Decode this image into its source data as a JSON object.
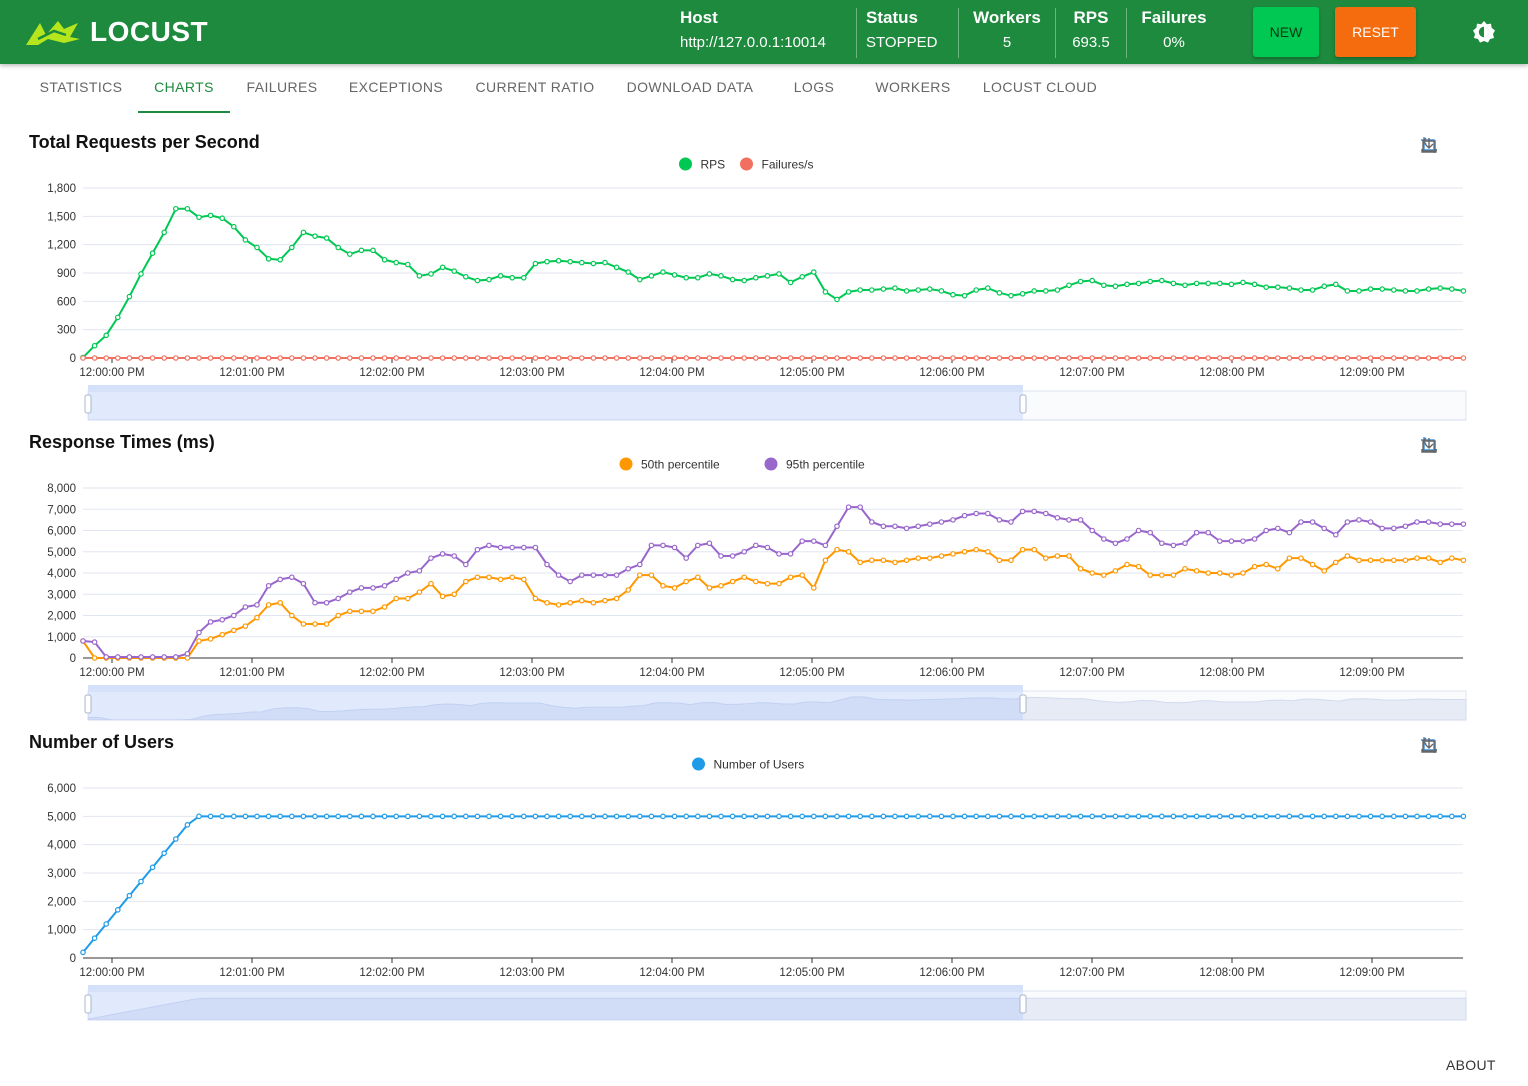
{
  "app": {
    "name": "LOCUST"
  },
  "header": {
    "host_label": "Host",
    "host_value": "http://127.0.0.1:10014",
    "status_label": "Status",
    "status_value": "STOPPED",
    "workers_label": "Workers",
    "workers_value": "5",
    "rps_label": "RPS",
    "rps_value": "693.5",
    "failures_label": "Failures",
    "failures_value": "0%",
    "new_label": "NEW",
    "reset_label": "RESET"
  },
  "tabs": [
    "STATISTICS",
    "CHARTS",
    "FAILURES",
    "EXCEPTIONS",
    "CURRENT RATIO",
    "DOWNLOAD DATA",
    "LOGS",
    "WORKERS",
    "LOCUST CLOUD"
  ],
  "active_tab": "CHARTS",
  "footer": {
    "about": "ABOUT"
  },
  "colors": {
    "brand": "#1d8a3e",
    "new": "#00c853",
    "reset": "#f56c0e"
  },
  "chart_data": [
    {
      "type": "line",
      "title": "Total Requests per Second",
      "ylim": [
        0,
        1800
      ],
      "yticks": [
        "0",
        "300",
        "600",
        "900",
        "1,200",
        "1,500",
        "1,800"
      ],
      "xticks": [
        "12:00:00 PM",
        "12:01:00 PM",
        "12:02:00 PM",
        "12:03:00 PM",
        "12:04:00 PM",
        "12:05:00 PM",
        "12:06:00 PM",
        "12:07:00 PM",
        "12:08:00 PM",
        "12:09:00 PM"
      ],
      "series": [
        {
          "name": "RPS",
          "color": "#00c853",
          "values": [
            5,
            130,
            240,
            430,
            650,
            890,
            1110,
            1330,
            1580,
            1580,
            1490,
            1510,
            1480,
            1390,
            1250,
            1170,
            1050,
            1040,
            1170,
            1330,
            1290,
            1270,
            1170,
            1100,
            1140,
            1140,
            1040,
            1010,
            990,
            870,
            890,
            960,
            920,
            860,
            820,
            830,
            870,
            850,
            850,
            1000,
            1020,
            1030,
            1020,
            1010,
            1000,
            1010,
            960,
            910,
            830,
            870,
            910,
            880,
            850,
            850,
            890,
            870,
            830,
            820,
            850,
            870,
            890,
            800,
            860,
            910,
            700,
            620,
            700,
            720,
            720,
            730,
            740,
            710,
            720,
            730,
            710,
            670,
            660,
            720,
            740,
            690,
            660,
            680,
            710,
            710,
            720,
            770,
            810,
            820,
            770,
            760,
            780,
            790,
            810,
            820,
            790,
            770,
            790,
            790,
            790,
            780,
            800,
            780,
            750,
            750,
            740,
            720,
            720,
            760,
            780,
            710,
            710,
            730,
            730,
            720,
            710,
            710,
            730,
            740,
            730,
            710,
            720,
            690
          ]
        },
        {
          "name": "Failures/s",
          "color": "#f2705f",
          "values": [
            0
          ]
        }
      ]
    },
    {
      "type": "line",
      "title": "Response Times (ms)",
      "ylim": [
        0,
        8000
      ],
      "yticks": [
        "0",
        "1,000",
        "2,000",
        "3,000",
        "4,000",
        "5,000",
        "6,000",
        "7,000",
        "8,000"
      ],
      "xticks": [
        "12:00:00 PM",
        "12:01:00 PM",
        "12:02:00 PM",
        "12:03:00 PM",
        "12:04:00 PM",
        "12:05:00 PM",
        "12:06:00 PM",
        "12:07:00 PM",
        "12:08:00 PM",
        "12:09:00 PM"
      ],
      "series": [
        {
          "name": "50th percentile",
          "color": "#ff9800",
          "values": [
            800,
            0,
            0,
            0,
            0,
            0,
            0,
            0,
            0,
            0,
            800,
            900,
            1100,
            1300,
            1500,
            1900,
            2500,
            2600,
            2000,
            1600,
            1600,
            1600,
            2000,
            2200,
            2200,
            2200,
            2400,
            2800,
            2800,
            3100,
            3500,
            2900,
            3000,
            3600,
            3800,
            3800,
            3700,
            3800,
            3700,
            2800,
            2600,
            2500,
            2600,
            2700,
            2600,
            2700,
            2800,
            3200,
            3900,
            3900,
            3400,
            3300,
            3600,
            3800,
            3300,
            3400,
            3600,
            3800,
            3600,
            3500,
            3500,
            3800,
            3900,
            3300,
            4600,
            5100,
            5000,
            4500,
            4600,
            4600,
            4500,
            4600,
            4700,
            4700,
            4800,
            4900,
            5000,
            5100,
            5000,
            4600,
            4600,
            5100,
            5100,
            4700,
            4800,
            4800,
            4200,
            4000,
            3900,
            4100,
            4400,
            4300,
            3900,
            3900,
            3900,
            4200,
            4100,
            4000,
            4000,
            3900,
            4000,
            4300,
            4400,
            4200,
            4700,
            4700,
            4400,
            4100,
            4500,
            4800,
            4600,
            4600,
            4600,
            4600,
            4600,
            4700,
            4700,
            4500,
            4700,
            4600,
            4600
          ]
        },
        {
          "name": "95th percentile",
          "color": "#9966cc",
          "values": [
            800,
            750,
            50,
            50,
            50,
            50,
            50,
            50,
            50,
            200,
            1200,
            1700,
            1800,
            2000,
            2400,
            2500,
            3400,
            3700,
            3800,
            3500,
            2600,
            2600,
            2800,
            3100,
            3300,
            3300,
            3400,
            3700,
            4000,
            4100,
            4700,
            4900,
            4800,
            4400,
            5100,
            5300,
            5200,
            5200,
            5200,
            5200,
            4400,
            3900,
            3600,
            3900,
            3900,
            3900,
            3900,
            4200,
            4400,
            5300,
            5300,
            5200,
            4700,
            5300,
            5400,
            4800,
            4800,
            5000,
            5300,
            5200,
            4900,
            4900,
            5500,
            5500,
            5300,
            6200,
            7100,
            7100,
            6400,
            6200,
            6200,
            6100,
            6200,
            6300,
            6400,
            6500,
            6700,
            6800,
            6800,
            6500,
            6400,
            6900,
            6900,
            6800,
            6600,
            6500,
            6500,
            6000,
            5600,
            5400,
            5600,
            6000,
            5900,
            5400,
            5300,
            5400,
            5900,
            5900,
            5500,
            5500,
            5500,
            5600,
            6000,
            6100,
            5900,
            6400,
            6400,
            6100,
            5800,
            6400,
            6500,
            6400,
            6100,
            6100,
            6200,
            6400,
            6400,
            6300,
            6300,
            6300,
            6400
          ]
        }
      ]
    },
    {
      "type": "line",
      "title": "Number of Users",
      "ylim": [
        0,
        6000
      ],
      "yticks": [
        "0",
        "1,000",
        "2,000",
        "3,000",
        "4,000",
        "5,000",
        "6,000"
      ],
      "xticks": [
        "12:00:00 PM",
        "12:01:00 PM",
        "12:02:00 PM",
        "12:03:00 PM",
        "12:04:00 PM",
        "12:05:00 PM",
        "12:06:00 PM",
        "12:07:00 PM",
        "12:08:00 PM",
        "12:09:00 PM"
      ],
      "series": [
        {
          "name": "Number of Users",
          "color": "#1f9be8",
          "values": [
            200,
            700,
            1200,
            1700,
            2200,
            2700,
            3200,
            3700,
            4200,
            4700,
            5000
          ]
        }
      ]
    }
  ]
}
